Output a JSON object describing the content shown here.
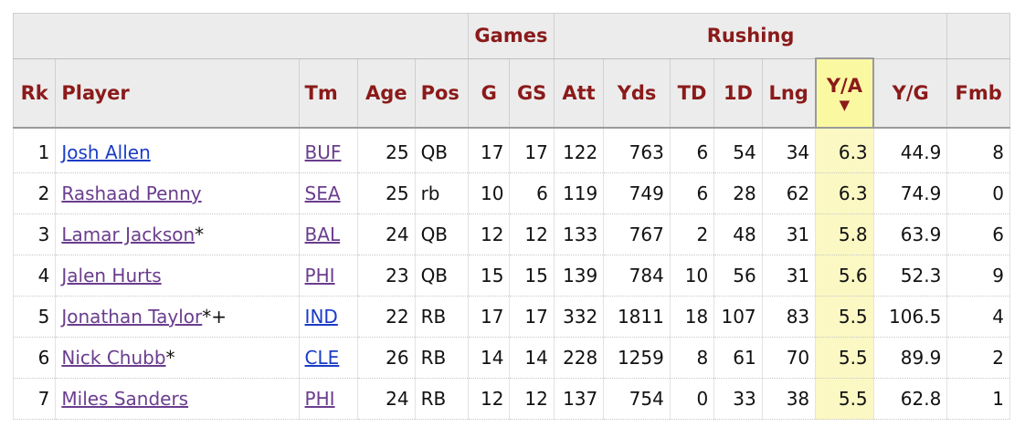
{
  "header": {
    "groups": {
      "games": "Games",
      "rushing": "Rushing"
    },
    "columns": {
      "rk": "Rk",
      "player": "Player",
      "tm": "Tm",
      "age": "Age",
      "pos": "Pos",
      "g": "G",
      "gs": "GS",
      "att": "Att",
      "yds": "Yds",
      "td": "TD",
      "first_downs": "1D",
      "lng": "Lng",
      "ypa": "Y/A",
      "ypg": "Y/G",
      "fmb": "Fmb"
    },
    "sort_indicator": "▼"
  },
  "rows": [
    {
      "rk": "1",
      "player": "Josh Allen",
      "suffix": "",
      "tm": "BUF",
      "age": "25",
      "pos": "QB",
      "g": "17",
      "gs": "17",
      "att": "122",
      "yds": "763",
      "td": "6",
      "first_downs": "54",
      "lng": "34",
      "ypa": "6.3",
      "ypg": "44.9",
      "fmb": "8"
    },
    {
      "rk": "2",
      "player": "Rashaad Penny",
      "suffix": "",
      "tm": "SEA",
      "age": "25",
      "pos": "rb",
      "g": "10",
      "gs": "6",
      "att": "119",
      "yds": "749",
      "td": "6",
      "first_downs": "28",
      "lng": "62",
      "ypa": "6.3",
      "ypg": "74.9",
      "fmb": "0"
    },
    {
      "rk": "3",
      "player": "Lamar Jackson",
      "suffix": "*",
      "tm": "BAL",
      "age": "24",
      "pos": "QB",
      "g": "12",
      "gs": "12",
      "att": "133",
      "yds": "767",
      "td": "2",
      "first_downs": "48",
      "lng": "31",
      "ypa": "5.8",
      "ypg": "63.9",
      "fmb": "6"
    },
    {
      "rk": "4",
      "player": "Jalen Hurts",
      "suffix": "",
      "tm": "PHI",
      "age": "23",
      "pos": "QB",
      "g": "15",
      "gs": "15",
      "att": "139",
      "yds": "784",
      "td": "10",
      "first_downs": "56",
      "lng": "31",
      "ypa": "5.6",
      "ypg": "52.3",
      "fmb": "9"
    },
    {
      "rk": "5",
      "player": "Jonathan Taylor",
      "suffix": "*+",
      "tm": "IND",
      "age": "22",
      "pos": "RB",
      "g": "17",
      "gs": "17",
      "att": "332",
      "yds": "1811",
      "td": "18",
      "first_downs": "107",
      "lng": "83",
      "ypa": "5.5",
      "ypg": "106.5",
      "fmb": "4"
    },
    {
      "rk": "6",
      "player": "Nick Chubb",
      "suffix": "*",
      "tm": "CLE",
      "age": "26",
      "pos": "RB",
      "g": "14",
      "gs": "14",
      "att": "228",
      "yds": "1259",
      "td": "8",
      "first_downs": "61",
      "lng": "70",
      "ypa": "5.5",
      "ypg": "89.9",
      "fmb": "2"
    },
    {
      "rk": "7",
      "player": "Miles Sanders",
      "suffix": "",
      "tm": "PHI",
      "age": "24",
      "pos": "RB",
      "g": "12",
      "gs": "12",
      "att": "137",
      "yds": "754",
      "td": "0",
      "first_downs": "33",
      "lng": "38",
      "ypa": "5.5",
      "ypg": "62.8",
      "fmb": "1"
    }
  ],
  "link_states": {
    "player": [
      "unvisited",
      "visited",
      "visited",
      "visited",
      "visited",
      "visited",
      "visited"
    ],
    "team": [
      "visited",
      "visited",
      "visited",
      "visited",
      "unvisited",
      "unvisited",
      "visited"
    ]
  },
  "colors": {
    "header_text": "#8b1a1a",
    "header_bg": "#ececec",
    "sorted_col_bg": "#fbf8c4",
    "link_unvisited": "#1a3cc6",
    "link_visited": "#6a3d8e"
  }
}
